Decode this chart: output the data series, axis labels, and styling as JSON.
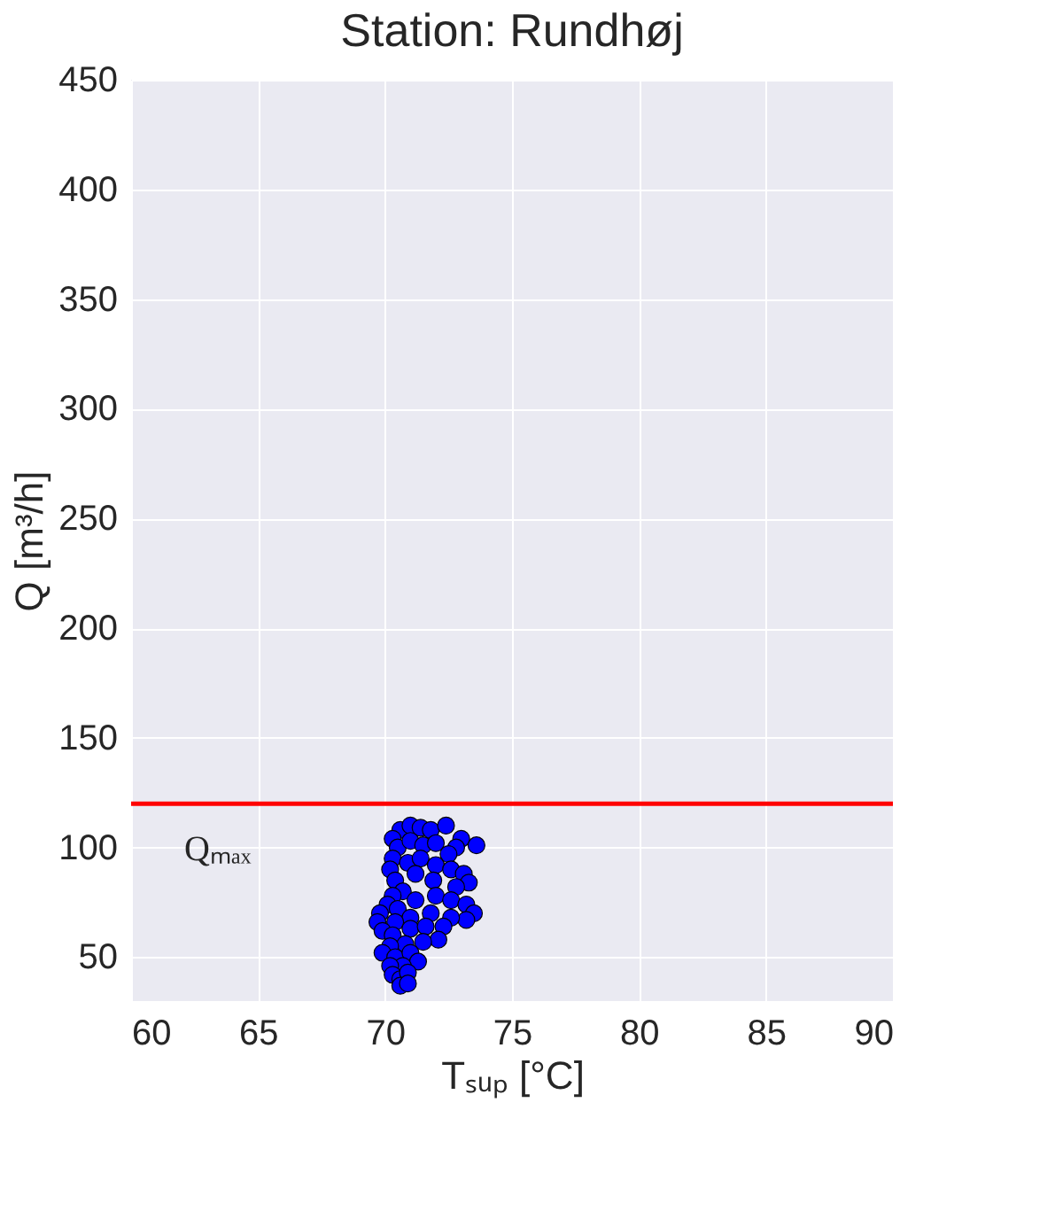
{
  "chart_data": {
    "type": "scatter",
    "title": "Station: Rundhøj",
    "xlabel": "Tₛᵤₚ [°C]",
    "ylabel": "Q [m³/h]",
    "xlim": [
      60,
      90
    ],
    "xticks": [
      60,
      65,
      70,
      75,
      80,
      85,
      90
    ],
    "ylim": [
      30,
      450
    ],
    "yticks": [
      50,
      100,
      150,
      200,
      250,
      300,
      350,
      400,
      450
    ],
    "grid": true,
    "marker": "circle",
    "ref_lines": [
      {
        "axis": "y",
        "value": 120,
        "label": "Qₘₐₓ",
        "color": "#ff0000"
      }
    ],
    "series": [
      {
        "color": "#0000ff",
        "x": [
          70.6,
          71.0,
          71.4,
          71.8,
          72.4,
          73.0,
          73.6,
          72.8,
          70.3,
          70.5,
          71.0,
          71.5,
          72.0,
          72.5,
          70.3,
          70.2,
          70.4,
          70.9,
          71.4,
          72.0,
          72.6,
          73.1,
          73.3,
          72.8,
          71.9,
          71.2,
          70.7,
          70.3,
          70.1,
          70.5,
          71.2,
          72.0,
          72.6,
          73.2,
          73.5,
          73.2,
          72.6,
          71.8,
          71.0,
          70.4,
          69.8,
          69.7,
          69.9,
          70.3,
          71.0,
          71.6,
          72.3,
          72.1,
          71.5,
          70.8,
          70.2,
          69.9,
          70.4,
          71.0,
          71.3,
          70.7,
          70.2,
          70.3,
          70.6,
          70.9,
          70.6,
          70.9
        ],
        "values": [
          108,
          110,
          109,
          108,
          110,
          104,
          101,
          100,
          104,
          100,
          103,
          101,
          102,
          97,
          95,
          90,
          85,
          93,
          95,
          92,
          90,
          88,
          84,
          82,
          85,
          88,
          80,
          78,
          74,
          72,
          76,
          78,
          76,
          74,
          70,
          67,
          68,
          70,
          68,
          66,
          70,
          66,
          62,
          60,
          63,
          64,
          64,
          58,
          57,
          56,
          55,
          52,
          50,
          52,
          48,
          46,
          46,
          42,
          40,
          43,
          37,
          38
        ]
      }
    ]
  }
}
